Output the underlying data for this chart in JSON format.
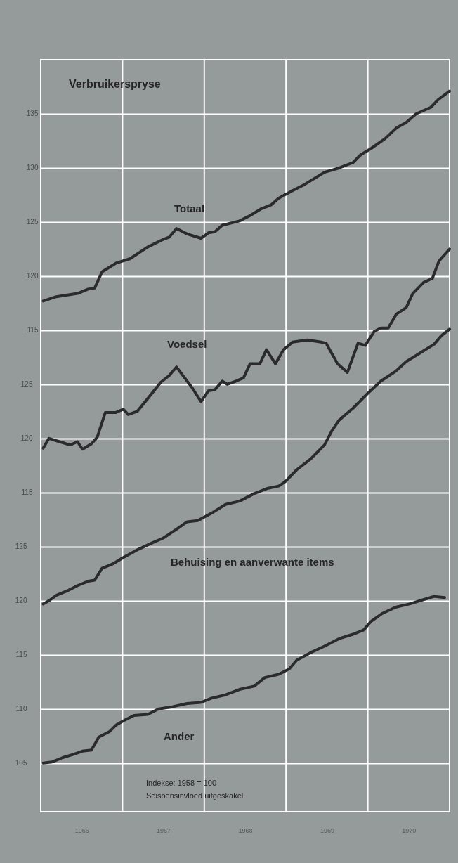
{
  "chart_data": {
    "type": "line",
    "title": "Verbruikerspryse",
    "annotations": [
      "Indekse: 1958 = 100",
      "Seisoensinvloed uitgeskakel."
    ],
    "xlim": [
      1966,
      1971
    ],
    "xticks": [
      {
        "value": 1966.5,
        "label": "1966"
      },
      {
        "value": 1967,
        "label": null
      },
      {
        "value": 1967.5,
        "label": "1967"
      },
      {
        "value": 1968,
        "label": null
      },
      {
        "value": 1968.5,
        "label": "1968"
      },
      {
        "value": 1969,
        "label": null
      },
      {
        "value": 1969.5,
        "label": "1969"
      },
      {
        "value": 1970,
        "label": null
      },
      {
        "value": 1970.5,
        "label": "1970"
      }
    ],
    "ylim": [
      70.5,
      140
    ],
    "yticks": [
      115,
      120,
      125,
      130,
      135
    ],
    "y2lim": [
      85.5,
      155
    ],
    "y2ticks": [
      115,
      120,
      125
    ],
    "y3lim": [
      100.5,
      170
    ],
    "y3ticks": [
      105,
      110,
      115,
      120,
      125
    ],
    "grid": true,
    "line_style": "solid",
    "marker": "none",
    "series": [
      {
        "name": "Totaal",
        "color": "#2b2b2b",
        "axis": "y",
        "x": [
          1966.03,
          1966.19,
          1966.45,
          1966.58,
          1966.66,
          1966.75,
          1966.92,
          1967.09,
          1967.31,
          1967.5,
          1967.57,
          1967.66,
          1967.79,
          1967.96,
          1968.05,
          1968.13,
          1968.22,
          1968.43,
          1968.56,
          1968.69,
          1968.82,
          1968.91,
          1969.08,
          1969.21,
          1969.34,
          1969.47,
          1969.65,
          1969.82,
          1969.91,
          1970.04,
          1970.21,
          1970.35,
          1970.47,
          1970.59,
          1970.77,
          1970.86,
          1971.0
        ],
        "values": [
          117.7,
          118.1,
          118.4,
          118.8,
          118.9,
          120.4,
          121.2,
          121.6,
          122.7,
          123.4,
          123.6,
          124.4,
          123.9,
          123.5,
          124.0,
          124.1,
          124.7,
          125.1,
          125.6,
          126.2,
          126.6,
          127.2,
          127.9,
          128.4,
          129.0,
          129.6,
          130.0,
          130.5,
          131.2,
          131.8,
          132.7,
          133.7,
          134.2,
          135.0,
          135.6,
          136.3,
          137.1
        ]
      },
      {
        "name": "Voedsel",
        "color": "#2b2b2b",
        "axis": "y2",
        "x": [
          1966.03,
          1966.1,
          1966.23,
          1966.36,
          1966.45,
          1966.51,
          1966.62,
          1966.69,
          1966.79,
          1966.92,
          1967.01,
          1967.07,
          1967.18,
          1967.31,
          1967.47,
          1967.57,
          1967.66,
          1967.76,
          1967.85,
          1967.96,
          1968.05,
          1968.13,
          1968.22,
          1968.28,
          1968.39,
          1968.48,
          1968.56,
          1968.68,
          1968.76,
          1968.87,
          1968.97,
          1969.08,
          1969.26,
          1969.43,
          1969.49,
          1969.63,
          1969.75,
          1969.88,
          1969.97,
          1970.08,
          1970.16,
          1970.25,
          1970.35,
          1970.47,
          1970.55,
          1970.68,
          1970.79,
          1970.87,
          1971.0
        ],
        "values": [
          119.1,
          120.0,
          119.7,
          119.4,
          119.7,
          119.0,
          119.5,
          120.1,
          122.4,
          122.4,
          122.7,
          122.2,
          122.5,
          123.7,
          125.2,
          125.8,
          126.6,
          125.6,
          124.7,
          123.4,
          124.4,
          124.5,
          125.3,
          125.0,
          125.3,
          125.6,
          126.9,
          126.9,
          128.2,
          126.9,
          128.2,
          128.9,
          129.1,
          128.9,
          128.8,
          126.9,
          126.1,
          128.8,
          128.6,
          129.9,
          130.2,
          130.2,
          131.5,
          132.1,
          133.4,
          134.4,
          134.8,
          136.4,
          137.5
        ]
      },
      {
        "name": "Behuising en aanverwante items",
        "color": "#2b2b2b",
        "axis": "y3",
        "x": [
          1966.03,
          1966.1,
          1966.19,
          1966.32,
          1966.45,
          1966.58,
          1966.66,
          1966.75,
          1966.88,
          1967.01,
          1967.18,
          1967.35,
          1967.5,
          1967.66,
          1967.79,
          1967.92,
          1968.09,
          1968.26,
          1968.43,
          1968.61,
          1968.78,
          1968.91,
          1968.99,
          1969.13,
          1969.3,
          1969.47,
          1969.56,
          1969.65,
          1969.82,
          1969.99,
          1970.16,
          1970.34,
          1970.47,
          1970.64,
          1970.81,
          1970.9,
          1971.0
        ],
        "values": [
          119.7,
          120.0,
          120.5,
          120.9,
          121.4,
          121.8,
          121.9,
          123.0,
          123.4,
          124.0,
          124.7,
          125.3,
          125.8,
          126.6,
          127.3,
          127.4,
          128.1,
          128.9,
          129.2,
          129.9,
          130.4,
          130.6,
          131.0,
          132.1,
          133.1,
          134.4,
          135.7,
          136.7,
          137.8,
          139.1,
          140.3,
          141.2,
          142.1,
          142.9,
          143.7,
          144.5,
          145.1
        ]
      },
      {
        "name": "Ander",
        "color": "#2b2b2b",
        "axis": "y3",
        "x": [
          1966.03,
          1966.14,
          1966.27,
          1966.4,
          1966.51,
          1966.62,
          1966.71,
          1966.84,
          1966.92,
          1967.01,
          1967.14,
          1967.31,
          1967.44,
          1967.61,
          1967.79,
          1967.96,
          1968.09,
          1968.26,
          1968.43,
          1968.61,
          1968.74,
          1968.91,
          1969.04,
          1969.13,
          1969.3,
          1969.47,
          1969.65,
          1969.82,
          1969.95,
          1970.04,
          1970.17,
          1970.34,
          1970.51,
          1970.68,
          1970.81,
          1970.94
        ],
        "values": [
          105.0,
          105.1,
          105.5,
          105.8,
          106.1,
          106.2,
          107.4,
          107.9,
          108.5,
          108.9,
          109.4,
          109.5,
          110.0,
          110.2,
          110.5,
          110.6,
          111.0,
          111.3,
          111.8,
          112.1,
          112.9,
          113.2,
          113.7,
          114.5,
          115.2,
          115.8,
          116.5,
          116.9,
          117.3,
          118.1,
          118.8,
          119.4,
          119.7,
          120.1,
          120.4,
          120.3
        ]
      }
    ]
  }
}
